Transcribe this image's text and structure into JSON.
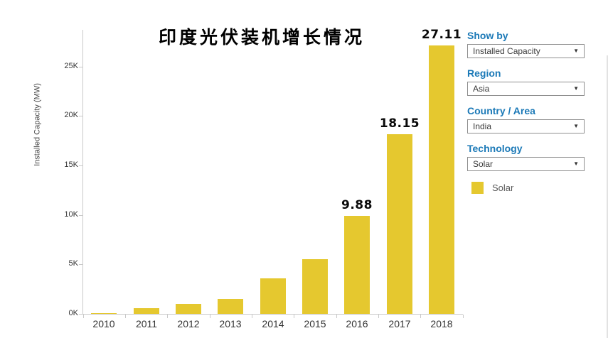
{
  "chart_data": {
    "type": "bar",
    "title": "印度光伏装机增长情况",
    "xlabel": "",
    "ylabel": "Installed Capacity (MW)",
    "units": "thousand MW (K)",
    "categories": [
      "2010",
      "2011",
      "2012",
      "2013",
      "2014",
      "2015",
      "2016",
      "2017",
      "2018"
    ],
    "values": [
      0.1,
      0.6,
      1.0,
      1.5,
      3.6,
      5.5,
      9.88,
      18.15,
      27.11
    ],
    "value_labels": [
      "",
      "",
      "",
      "",
      "",
      "",
      "9.88",
      "18.15",
      "27.11"
    ],
    "ytick_labels": [
      "0K",
      "5K",
      "10K",
      "15K",
      "20K",
      "25K"
    ],
    "ytick_step": 5,
    "ylim": [
      0,
      28.5
    ],
    "grid": "off",
    "legend_position": "right",
    "series_name": "Solar",
    "bar_color": "#e5c82f"
  },
  "panel": {
    "controls": [
      {
        "label": "Show by",
        "value": "Installed Capacity"
      },
      {
        "label": "Region",
        "value": "Asia"
      },
      {
        "label": "Country / Area",
        "value": "India"
      },
      {
        "label": "Technology",
        "value": "Solar"
      }
    ],
    "legend": {
      "label": "Solar",
      "color": "#e5c82f"
    }
  },
  "icons": {
    "dropdown_caret": "▼"
  },
  "colors": {
    "accent_blue": "#1b79b7",
    "bar_yellow": "#e5c82f",
    "axis_gray": "#c9c9c9",
    "text_dark": "#333333"
  }
}
